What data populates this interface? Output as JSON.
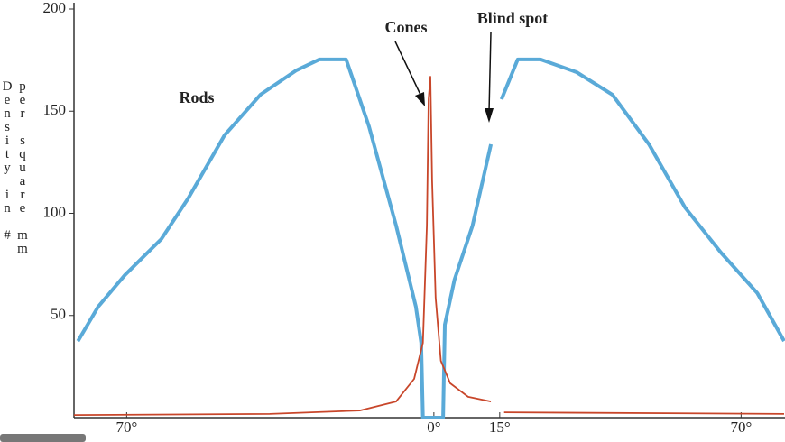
{
  "chart_data": {
    "type": "line",
    "y_label_left": "Density in #",
    "y_label_right": "per square mm",
    "annotation": "Blind spot",
    "xlim": [
      -82,
      80
    ],
    "ylim": [
      0,
      200
    ],
    "yticks": [
      50,
      100,
      150,
      200
    ],
    "xticks": [
      {
        "value": -70,
        "label": "70°"
      },
      {
        "value": 0,
        "label": "0°"
      },
      {
        "value": 15,
        "label": "15°"
      },
      {
        "value": 70,
        "label": "70°"
      }
    ],
    "series": [
      {
        "name": "Rods",
        "color": "#5aaad8",
        "x": [
          -81.1,
          -76.5,
          -70.4,
          -62.1,
          -56.0,
          -47.7,
          -39.5,
          -31.3,
          -26.1,
          -20.0,
          -14.8,
          -8.6,
          -4.1,
          -2.9,
          -2.5,
          2.1,
          2.5,
          4.7,
          8.8,
          13.0,
          14.5,
          15.4,
          19.1,
          24.3,
          32.5,
          40.7,
          49.0,
          57.2,
          65.4,
          73.7,
          79.8
        ],
        "values": [
          37.5,
          54.3,
          69.8,
          87.4,
          107.3,
          138.2,
          158.1,
          170,
          175.3,
          175.3,
          142.6,
          94,
          54.3,
          36.6,
          0,
          0,
          45.5,
          67.5,
          94,
          133.8,
          null,
          155.8,
          175.3,
          175.3,
          169.1,
          158,
          133.8,
          102.9,
          80.8,
          60.9,
          37.5
        ]
      },
      {
        "name": "Cones",
        "color": "#c8462a",
        "x": [
          -82,
          -37.4,
          -16.9,
          -8.6,
          -4.5,
          -2.5,
          -1.6,
          -1.2,
          -0.8,
          -0.4,
          0.4,
          1.6,
          3.7,
          7.8,
          13.0,
          14.5,
          16.0,
          79.8
        ],
        "values": [
          1.3,
          1.8,
          3.5,
          7.9,
          19,
          36.6,
          94,
          155.8,
          166.9,
          116,
          58.7,
          27.8,
          16.8,
          10.2,
          7.9,
          null,
          2.6,
          1.8
        ]
      }
    ]
  }
}
